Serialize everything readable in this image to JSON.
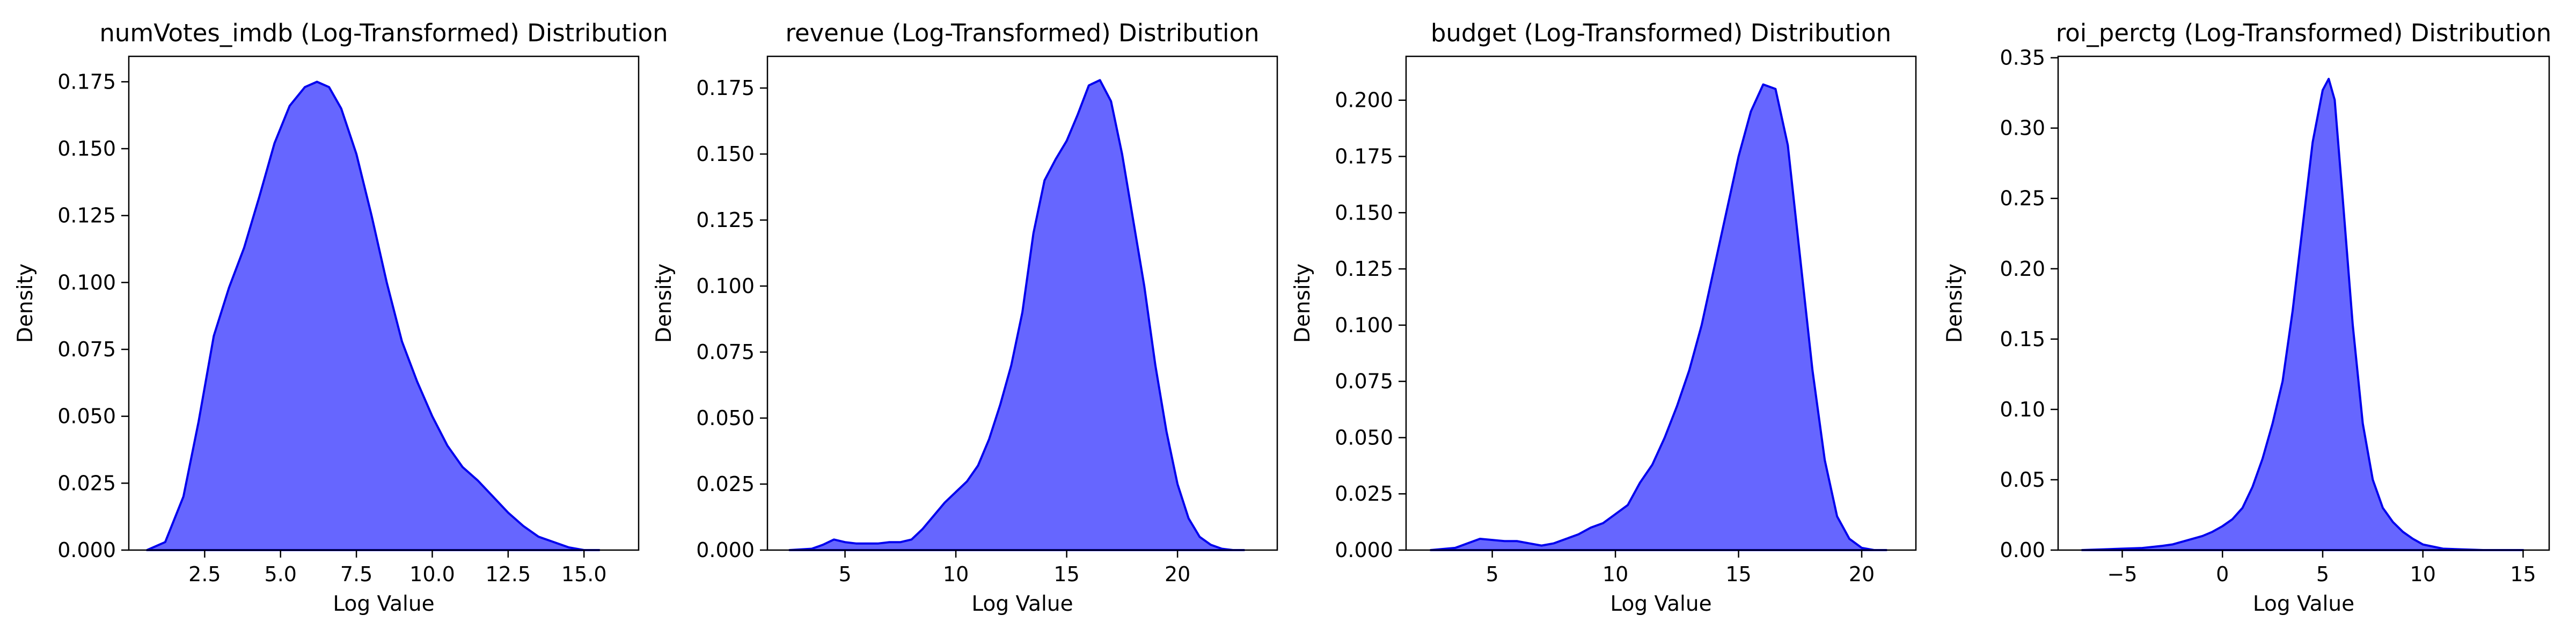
{
  "chart_data": [
    {
      "type": "area",
      "title": "numVotes_imdb (Log-Transformed) Distribution",
      "xlabel": "Log Value",
      "ylabel": "Density",
      "xlim": [
        0.0,
        16.8
      ],
      "ylim": [
        0,
        0.1845
      ],
      "xticks": [
        2.5,
        5.0,
        7.5,
        10.0,
        12.5,
        15.0
      ],
      "xtick_labels": [
        "2.5",
        "5.0",
        "7.5",
        "10.0",
        "12.5",
        "15.0"
      ],
      "yticks": [
        0,
        0.025,
        0.05,
        0.075,
        0.1,
        0.125,
        0.15,
        0.175
      ],
      "ytick_labels": [
        "0.000",
        "0.025",
        "0.050",
        "0.075",
        "0.100",
        "0.125",
        "0.150",
        "0.175"
      ],
      "fill_color": "#6666ff",
      "line_color": "#0000ee",
      "x": [
        0.6,
        1.2,
        1.8,
        2.3,
        2.8,
        3.3,
        3.8,
        4.3,
        4.8,
        5.3,
        5.8,
        6.2,
        6.6,
        7.0,
        7.5,
        8.0,
        8.5,
        9.0,
        9.5,
        10.0,
        10.5,
        11.0,
        11.5,
        12.0,
        12.5,
        13.0,
        13.5,
        14.0,
        14.5,
        15.0,
        15.5
      ],
      "y": [
        0.0,
        0.003,
        0.02,
        0.048,
        0.08,
        0.098,
        0.113,
        0.132,
        0.152,
        0.166,
        0.173,
        0.175,
        0.173,
        0.165,
        0.148,
        0.125,
        0.1,
        0.078,
        0.063,
        0.05,
        0.039,
        0.031,
        0.026,
        0.02,
        0.014,
        0.009,
        0.005,
        0.003,
        0.001,
        0.0,
        0.0
      ]
    },
    {
      "type": "area",
      "title": "revenue (Log-Transformed) Distribution",
      "xlabel": "Log Value",
      "ylabel": "Density",
      "xlim": [
        1.5,
        24.5
      ],
      "ylim": [
        0,
        0.187
      ],
      "xticks": [
        5,
        10,
        15,
        20
      ],
      "xtick_labels": [
        "5",
        "10",
        "15",
        "20"
      ],
      "yticks": [
        0,
        0.025,
        0.05,
        0.075,
        0.1,
        0.125,
        0.15,
        0.175
      ],
      "ytick_labels": [
        "0.000",
        "0.025",
        "0.050",
        "0.075",
        "0.100",
        "0.125",
        "0.150",
        "0.175"
      ],
      "fill_color": "#6666ff",
      "line_color": "#0000ee",
      "x": [
        2.5,
        3.5,
        4.0,
        4.5,
        5.0,
        5.5,
        6.0,
        6.5,
        7.0,
        7.5,
        8.0,
        8.5,
        9.0,
        9.5,
        10.0,
        10.5,
        11.0,
        11.5,
        12.0,
        12.5,
        13.0,
        13.5,
        14.0,
        14.5,
        15.0,
        15.5,
        16.0,
        16.5,
        17.0,
        17.5,
        18.0,
        18.5,
        19.0,
        19.5,
        20.0,
        20.5,
        21.0,
        21.5,
        22.0,
        22.5,
        23.0
      ],
      "y": [
        0.0,
        0.0005,
        0.002,
        0.004,
        0.003,
        0.0025,
        0.0025,
        0.0025,
        0.003,
        0.003,
        0.004,
        0.008,
        0.013,
        0.018,
        0.022,
        0.026,
        0.032,
        0.042,
        0.055,
        0.07,
        0.09,
        0.12,
        0.14,
        0.148,
        0.155,
        0.165,
        0.176,
        0.178,
        0.17,
        0.15,
        0.125,
        0.1,
        0.07,
        0.045,
        0.025,
        0.012,
        0.005,
        0.002,
        0.0005,
        0.0,
        0.0
      ]
    },
    {
      "type": "area",
      "title": "budget (Log-Transformed) Distribution",
      "xlabel": "Log Value",
      "ylabel": "Density",
      "xlim": [
        1.5,
        22.2
      ],
      "ylim": [
        0,
        0.2195
      ],
      "xticks": [
        5,
        10,
        15,
        20
      ],
      "xtick_labels": [
        "5",
        "10",
        "15",
        "20"
      ],
      "yticks": [
        0,
        0.025,
        0.05,
        0.075,
        0.1,
        0.125,
        0.15,
        0.175,
        0.2
      ],
      "ytick_labels": [
        "0.000",
        "0.025",
        "0.050",
        "0.075",
        "0.100",
        "0.125",
        "0.150",
        "0.175",
        "0.200"
      ],
      "fill_color": "#6666ff",
      "line_color": "#0000ee",
      "x": [
        2.5,
        3.5,
        4.0,
        4.5,
        5.0,
        5.5,
        6.0,
        6.5,
        7.0,
        7.5,
        8.0,
        8.5,
        9.0,
        9.5,
        10.0,
        10.5,
        11.0,
        11.5,
        12.0,
        12.5,
        13.0,
        13.5,
        14.0,
        14.5,
        15.0,
        15.5,
        16.0,
        16.5,
        17.0,
        17.5,
        18.0,
        18.5,
        19.0,
        19.5,
        20.0,
        20.5,
        21.0
      ],
      "y": [
        0.0,
        0.001,
        0.003,
        0.005,
        0.0045,
        0.004,
        0.004,
        0.003,
        0.002,
        0.003,
        0.005,
        0.007,
        0.01,
        0.012,
        0.016,
        0.02,
        0.03,
        0.038,
        0.05,
        0.064,
        0.08,
        0.1,
        0.125,
        0.15,
        0.175,
        0.195,
        0.207,
        0.205,
        0.18,
        0.13,
        0.08,
        0.04,
        0.015,
        0.005,
        0.001,
        0.0,
        0.0
      ]
    },
    {
      "type": "area",
      "title": "roi_perctg (Log-Transformed) Distribution",
      "xlabel": "Log Value",
      "ylabel": "Density",
      "xlim": [
        -8.2,
        16.3
      ],
      "ylim": [
        0,
        0.351
      ],
      "xticks": [
        -5,
        0,
        5,
        10,
        15
      ],
      "xtick_labels": [
        "−5",
        "0",
        "5",
        "10",
        "15"
      ],
      "yticks": [
        0,
        0.05,
        0.1,
        0.15,
        0.2,
        0.25,
        0.3,
        0.35
      ],
      "ytick_labels": [
        "0.00",
        "0.05",
        "0.10",
        "0.15",
        "0.20",
        "0.25",
        "0.30",
        "0.35"
      ],
      "fill_color": "#6666ff",
      "line_color": "#0000ee",
      "x": [
        -7.0,
        -6.0,
        -5.0,
        -4.0,
        -3.0,
        -2.5,
        -2.0,
        -1.5,
        -1.0,
        -0.5,
        0.0,
        0.5,
        1.0,
        1.5,
        2.0,
        2.5,
        3.0,
        3.5,
        4.0,
        4.5,
        5.0,
        5.3,
        5.6,
        6.0,
        6.5,
        7.0,
        7.5,
        8.0,
        8.5,
        9.0,
        9.5,
        10.0,
        11.0,
        12.0,
        13.0,
        14.0,
        15.0
      ],
      "y": [
        0.0,
        0.0005,
        0.001,
        0.0015,
        0.003,
        0.004,
        0.006,
        0.008,
        0.01,
        0.013,
        0.017,
        0.022,
        0.03,
        0.045,
        0.065,
        0.09,
        0.12,
        0.17,
        0.23,
        0.29,
        0.327,
        0.335,
        0.32,
        0.25,
        0.16,
        0.09,
        0.05,
        0.03,
        0.02,
        0.013,
        0.008,
        0.004,
        0.001,
        0.0005,
        0.0,
        0.0,
        0.0
      ]
    }
  ]
}
